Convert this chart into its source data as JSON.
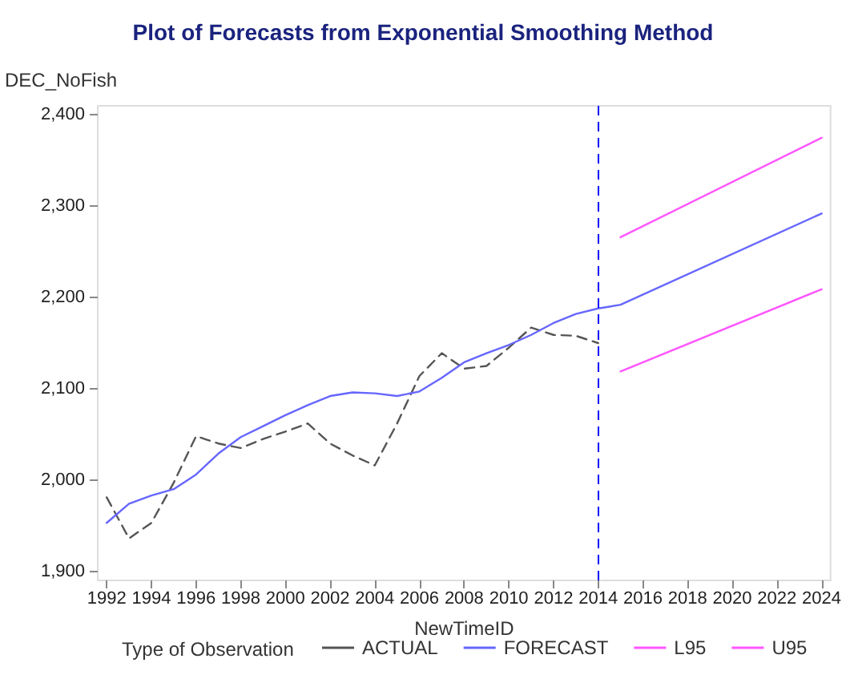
{
  "chart_data": {
    "type": "line",
    "title": "Plot of Forecasts from Exponential Smoothing Method",
    "xlabel": "NewTimeID",
    "ylabel": "DEC_NoFish",
    "legend_title": "Type of Observation",
    "legend": "bottom",
    "grid": false,
    "marker": "none",
    "xlim": [
      1991.6,
      2024.4
    ],
    "xticks": [
      1992,
      1994,
      1996,
      1998,
      2000,
      2002,
      2004,
      2006,
      2008,
      2010,
      2012,
      2014,
      2016,
      2018,
      2020,
      2022,
      2024
    ],
    "ylim": [
      1890,
      2410
    ],
    "yticks": [
      {
        "value": 1900,
        "label": "1,900"
      },
      {
        "value": 2000,
        "label": "2,000"
      },
      {
        "value": 2100,
        "label": "2,100"
      },
      {
        "value": 2200,
        "label": "2,200"
      },
      {
        "value": 2300,
        "label": "2,300"
      },
      {
        "value": 2400,
        "label": "2,400"
      }
    ],
    "ref_lines": [
      {
        "axis": "x",
        "value": 2014,
        "label": null,
        "color": "#0000ff",
        "line_style": "dashed"
      }
    ],
    "series": [
      {
        "name": "ACTUAL",
        "color": "#555555",
        "line_style": "dashed",
        "x": [
          1992,
          1993,
          1994,
          1995,
          1996,
          1997,
          1998,
          1999,
          2000,
          2001,
          2002,
          2003,
          2004,
          2005,
          2006,
          2007,
          2008,
          2009,
          2010,
          2011,
          2012,
          2013,
          2014
        ],
        "values": [
          1981,
          1936,
          1953,
          1997,
          2048,
          2040,
          2035,
          2045,
          2053,
          2062,
          2040,
          2027,
          2016,
          2062,
          2114,
          2139,
          2122,
          2125,
          2145,
          2167,
          2159,
          2158,
          2150
        ]
      },
      {
        "name": "FORECAST",
        "color": "#6666ff",
        "line_style": "solid",
        "x": [
          1992,
          1993,
          1994,
          1995,
          1996,
          1997,
          1998,
          1999,
          2000,
          2001,
          2002,
          2003,
          2004,
          2005,
          2006,
          2007,
          2008,
          2009,
          2010,
          2011,
          2012,
          2013,
          2014,
          2015,
          2024
        ],
        "values": [
          1953,
          1974,
          1983,
          1990,
          2006,
          2029,
          2047,
          2059,
          2071,
          2082,
          2092,
          2096,
          2095,
          2092,
          2097,
          2112,
          2129,
          2139,
          2148,
          2159,
          2172,
          2182,
          2188,
          2192,
          2292
        ]
      },
      {
        "name": "L95",
        "color": "#ff55ff",
        "line_style": "solid",
        "x": [
          2015,
          2024
        ],
        "values": [
          2119,
          2209
        ]
      },
      {
        "name": "U95",
        "color": "#ff55ff",
        "line_style": "solid",
        "x": [
          2015,
          2024
        ],
        "values": [
          2266,
          2375
        ]
      }
    ]
  }
}
